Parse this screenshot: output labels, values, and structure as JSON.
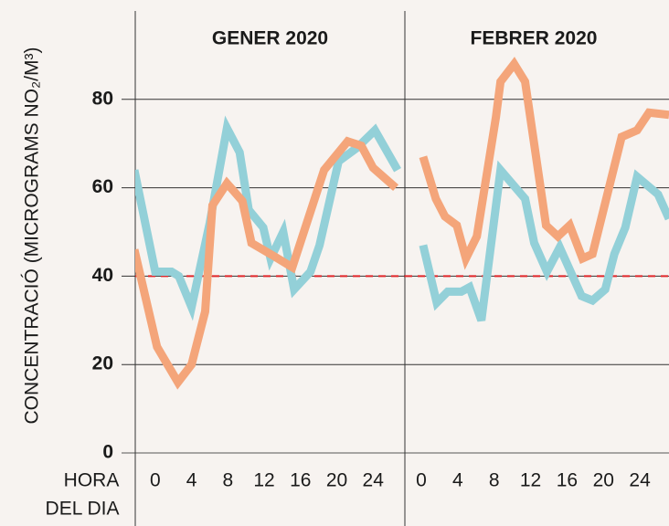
{
  "chart_data": [
    {
      "type": "line",
      "title": "GENER 2020",
      "ylabel": "CONCENTRACIÓ (MICROGRAMS NO₂/M³)",
      "xlabel": [
        "HORA",
        "DEL DIA"
      ],
      "xlim": [
        -2.2,
        27.5
      ],
      "xticks": [
        0,
        4,
        8,
        12,
        16,
        20,
        24
      ],
      "ylim": [
        0,
        100
      ],
      "yticks": [
        0,
        20,
        40,
        60,
        80
      ],
      "grid": true,
      "hline": {
        "value": 40,
        "color": "#e0262a"
      },
      "series": [
        {
          "color": "#93d0d8",
          "x": [
            -2.3,
            0,
            1.8,
            2.6,
            4,
            6,
            7.9,
            9.3,
            10.3,
            11.9,
            12.7,
            14.1,
            15.3,
            17.1,
            18.1,
            20.2,
            22.2,
            24.2,
            26.7
          ],
          "values": [
            64,
            41,
            41,
            40,
            33,
            52,
            73.5,
            68,
            55,
            51,
            44,
            50,
            37,
            41,
            47,
            66,
            69,
            73,
            64
          ]
        },
        {
          "color": "#f4a57a",
          "x": [
            -2.3,
            0.2,
            2.5,
            4,
            5.5,
            6.3,
            7.9,
            9.6,
            10.6,
            13.1,
            15.1,
            18.6,
            21.2,
            22.7,
            24,
            26.5
          ],
          "values": [
            46,
            24,
            16,
            20,
            32,
            56,
            61,
            57,
            47.5,
            44.5,
            42,
            64,
            70.5,
            69.5,
            64.5,
            60
          ]
        }
      ]
    },
    {
      "type": "line",
      "title": "FEBRER 2020",
      "xlim": [
        -1.8,
        27.2
      ],
      "xticks": [
        0,
        4,
        8,
        12,
        16,
        20,
        24
      ],
      "ylim": [
        0,
        100
      ],
      "yticks": [
        0,
        20,
        40,
        60,
        80
      ],
      "grid": true,
      "hline": {
        "value": 40,
        "color": "#e0262a"
      },
      "series": [
        {
          "color": "#93d0d8",
          "x": [
            0.2,
            1.7,
            2.9,
            4.4,
            5.3,
            6.6,
            8.7,
            11.4,
            12.4,
            13.8,
            15.2,
            17.6,
            18.8,
            20.2,
            21.2,
            22.4,
            23.7,
            26,
            27.2
          ],
          "values": [
            47,
            34,
            36.5,
            36.5,
            37.5,
            30,
            64,
            57.5,
            47.5,
            41,
            46.5,
            35.5,
            34.5,
            37,
            45,
            51,
            62.5,
            58.5,
            53
          ]
        },
        {
          "color": "#f4a57a",
          "x": [
            0.2,
            1.6,
            2.6,
            3.9,
            4.9,
            6.1,
            8.2,
            8.7,
            10.2,
            11.4,
            13.7,
            15,
            16.3,
            17.7,
            18.8,
            22,
            23.7,
            25,
            27.2
          ],
          "values": [
            67,
            57.5,
            53.5,
            51.5,
            44,
            49,
            76,
            84,
            88,
            84,
            51.5,
            49,
            51.5,
            44,
            45,
            71.5,
            73,
            77,
            76.5
          ]
        }
      ]
    }
  ]
}
